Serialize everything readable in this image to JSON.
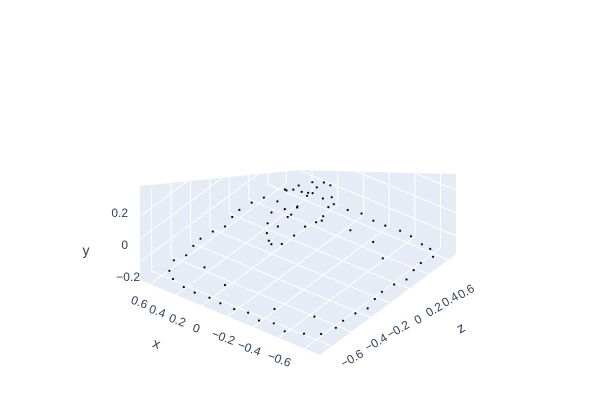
{
  "chart_data": {
    "type": "scatter",
    "dimensions": 3,
    "xlabel": "x",
    "ylabel": "y",
    "zlabel": "z",
    "x_range": [
      -0.72,
      0.68
    ],
    "y_range": [
      -0.36,
      0.36
    ],
    "z_range": [
      -0.72,
      0.68
    ],
    "x_ticks": [
      {
        "v": 0.6,
        "label": "0.6"
      },
      {
        "v": 0.4,
        "label": "0.4"
      },
      {
        "v": 0.2,
        "label": "0.2"
      },
      {
        "v": 0,
        "label": "0"
      },
      {
        "v": -0.2,
        "label": "−0.2"
      },
      {
        "v": -0.4,
        "label": "−0.4"
      },
      {
        "v": -0.6,
        "label": "−0.6"
      }
    ],
    "y_ticks": [
      {
        "v": 0.2,
        "label": "0.2"
      },
      {
        "v": 0,
        "label": "0"
      },
      {
        "v": -0.2,
        "label": "−0.2"
      }
    ],
    "z_ticks": [
      {
        "v": 0.6,
        "label": "0.6"
      },
      {
        "v": 0.4,
        "label": "0.4"
      },
      {
        "v": 0.2,
        "label": "0.2"
      },
      {
        "v": 0,
        "label": "0"
      },
      {
        "v": -0.2,
        "label": "−0.2"
      },
      {
        "v": -0.4,
        "label": "−0.4"
      },
      {
        "v": -0.6,
        "label": "−0.6"
      }
    ],
    "marker_color": "#000000",
    "background_color": "#e5ecf6",
    "grid": true,
    "legend": "none",
    "series": [
      {
        "description_visible": false,
        "points": [
          [
            0.55,
            -0.34,
            0.6
          ],
          [
            0.5,
            -0.33,
            0.62
          ],
          [
            0.45,
            -0.34,
            0.64
          ],
          [
            0.38,
            -0.33,
            0.66
          ],
          [
            0.3,
            -0.34,
            0.66
          ],
          [
            0.2,
            -0.33,
            0.64
          ],
          [
            0.1,
            -0.34,
            0.65
          ],
          [
            0.0,
            -0.33,
            0.66
          ],
          [
            -0.1,
            -0.34,
            0.65
          ],
          [
            -0.2,
            -0.33,
            0.64
          ],
          [
            -0.3,
            -0.34,
            0.66
          ],
          [
            -0.4,
            -0.33,
            0.64
          ],
          [
            -0.5,
            -0.34,
            0.62
          ],
          [
            -0.58,
            -0.33,
            0.6
          ],
          [
            -0.64,
            -0.34,
            0.55
          ],
          [
            0.6,
            -0.34,
            0.45
          ],
          [
            0.62,
            -0.33,
            0.35
          ],
          [
            0.64,
            -0.34,
            0.25
          ],
          [
            0.62,
            -0.33,
            0.15
          ],
          [
            0.6,
            -0.34,
            0.05
          ],
          [
            0.62,
            -0.33,
            -0.05
          ],
          [
            0.64,
            -0.34,
            -0.15
          ],
          [
            0.62,
            -0.33,
            -0.25
          ],
          [
            0.6,
            -0.34,
            -0.35
          ],
          [
            0.62,
            -0.33,
            -0.45
          ],
          [
            0.58,
            -0.34,
            -0.55
          ],
          [
            0.5,
            -0.33,
            -0.62
          ],
          [
            -0.62,
            -0.34,
            0.45
          ],
          [
            -0.64,
            -0.33,
            0.35
          ],
          [
            -0.66,
            -0.34,
            0.25
          ],
          [
            -0.64,
            -0.33,
            0.15
          ],
          [
            -0.62,
            -0.34,
            0.05
          ],
          [
            -0.64,
            -0.33,
            -0.05
          ],
          [
            -0.66,
            -0.34,
            -0.15
          ],
          [
            -0.64,
            -0.33,
            -0.25
          ],
          [
            -0.62,
            -0.34,
            -0.35
          ],
          [
            -0.64,
            -0.33,
            -0.45
          ],
          [
            -0.6,
            -0.34,
            -0.55
          ],
          [
            -0.52,
            -0.33,
            -0.62
          ],
          [
            0.4,
            -0.34,
            -0.64
          ],
          [
            0.3,
            -0.33,
            -0.66
          ],
          [
            0.2,
            -0.34,
            -0.64
          ],
          [
            0.1,
            -0.33,
            -0.66
          ],
          [
            0.0,
            -0.34,
            -0.65
          ],
          [
            -0.1,
            -0.33,
            -0.64
          ],
          [
            -0.2,
            -0.34,
            -0.66
          ],
          [
            -0.3,
            -0.33,
            -0.64
          ],
          [
            -0.4,
            -0.34,
            -0.66
          ],
          [
            0.35,
            -0.34,
            0.4
          ],
          [
            0.15,
            -0.33,
            0.45
          ],
          [
            -0.05,
            -0.34,
            0.48
          ],
          [
            -0.25,
            -0.33,
            0.45
          ],
          [
            -0.4,
            -0.34,
            0.35
          ],
          [
            0.42,
            -0.33,
            -0.4
          ],
          [
            -0.45,
            -0.34,
            -0.42
          ],
          [
            0.2,
            -0.33,
            -0.48
          ],
          [
            -0.2,
            -0.34,
            -0.5
          ],
          [
            0.02,
            0.16,
            0.3
          ],
          [
            0.05,
            0.2,
            0.22
          ],
          [
            0.08,
            0.22,
            0.12
          ],
          [
            0.1,
            0.23,
            0.02
          ],
          [
            0.08,
            0.22,
            -0.1
          ],
          [
            0.05,
            0.2,
            -0.2
          ],
          [
            0.02,
            0.17,
            -0.28
          ],
          [
            -0.02,
            0.14,
            -0.34
          ],
          [
            -0.05,
            0.1,
            -0.36
          ],
          [
            0.0,
            0.12,
            0.34
          ],
          [
            -0.04,
            0.06,
            0.3
          ],
          [
            -0.06,
            0.02,
            0.24
          ],
          [
            -0.08,
            0.0,
            0.16
          ],
          [
            -0.1,
            0.02,
            0.06
          ],
          [
            -0.09,
            0.04,
            -0.04
          ],
          [
            -0.08,
            0.02,
            -0.14
          ],
          [
            -0.06,
            0.0,
            -0.24
          ],
          [
            -0.04,
            0.04,
            -0.32
          ],
          [
            0.0,
            0.18,
            0.1
          ],
          [
            0.0,
            0.15,
            0.0
          ],
          [
            0.0,
            0.12,
            -0.1
          ],
          [
            0.0,
            0.19,
            0.2
          ],
          [
            0.0,
            0.1,
            -0.2
          ],
          [
            0.04,
            0.09,
            0.05
          ],
          [
            0.06,
            0.13,
            -0.05
          ],
          [
            0.03,
            0.16,
            0.15
          ]
        ]
      }
    ]
  }
}
